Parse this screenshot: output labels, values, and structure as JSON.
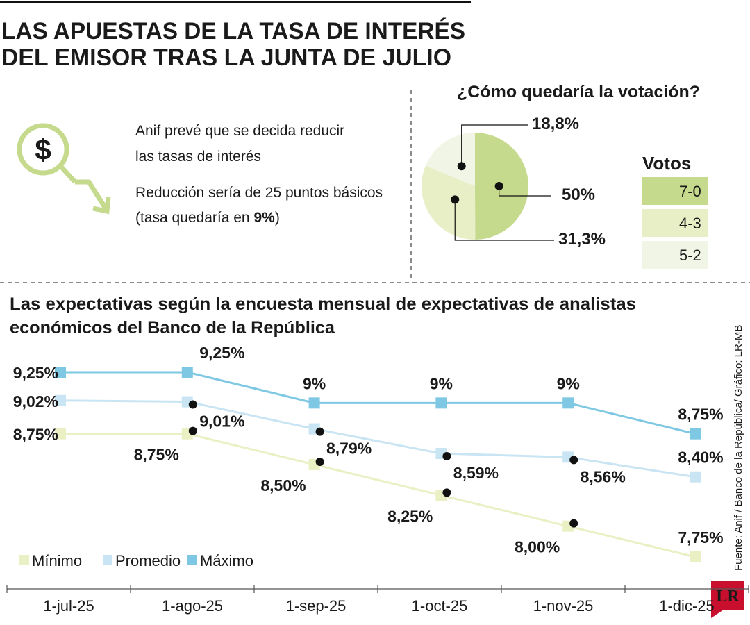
{
  "header": {
    "title": [
      "LAS APUESTAS DE LA TASA DE INTERÉS",
      "DEL EMISOR TRAS LA JUNTA DE JULIO"
    ]
  },
  "notes": [
    [
      "Anif prevé que se decida reducir",
      "las tasas de interés"
    ],
    [
      "Reducción sería de 25 puntos básicos",
      "(tasa quedaría en",
      "9%",
      ")"
    ]
  ],
  "source": "Fuente: Anif / Banco de la República/ Gráfico: LR-MB",
  "logo": "LR",
  "chart_data": [
    {
      "type": "pie",
      "title": "¿Cómo quedaría la votación?",
      "legend_title": "Votos",
      "categories": [
        "7-0",
        "4-3",
        "5-2"
      ],
      "values": [
        50,
        31.3,
        18.8
      ],
      "value_labels": [
        "50%",
        "31,3%",
        "18,8%"
      ],
      "colors": [
        "#c5da8c",
        "#e8efc6",
        "#f1f5e6"
      ]
    },
    {
      "type": "line",
      "title": [
        "Las expectativas según la encuesta mensual de expectativas de analistas",
        "económicos del Banco de la República"
      ],
      "categories": [
        "1-jul-25",
        "1-ago-25",
        "1-sep-25",
        "1-oct-25",
        "1-nov-25",
        "1-dic-25"
      ],
      "series": [
        {
          "name": "Mínimo",
          "color": "#eaf0c4",
          "values": [
            8.75,
            8.75,
            8.5,
            8.25,
            8.0,
            7.75
          ],
          "value_labels": [
            "8,75%",
            "8,75%",
            "8,50%",
            "8,25%",
            "8,00%",
            "7,75%"
          ]
        },
        {
          "name": "Promedio",
          "color": "#c9e5f3",
          "values": [
            9.02,
            9.01,
            8.79,
            8.59,
            8.56,
            8.4
          ],
          "value_labels": [
            "9,02%",
            "9,01%",
            "8,79%",
            "8,59%",
            "8,56%",
            "8,40%"
          ]
        },
        {
          "name": "Máximo",
          "color": "#7ec8e3",
          "values": [
            9.25,
            9.25,
            9,
            9,
            9,
            8.75
          ],
          "value_labels": [
            "9,25%",
            "9,25%",
            "9%",
            "9%",
            "9%",
            "8,75%"
          ]
        }
      ]
    }
  ]
}
